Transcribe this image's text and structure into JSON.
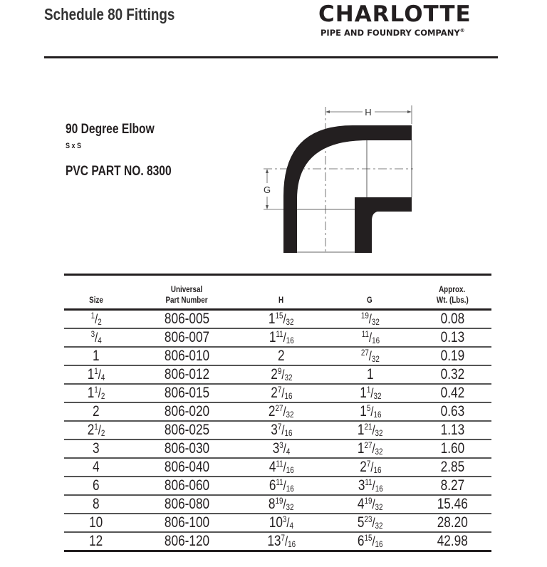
{
  "header": {
    "title": "Schedule 80 Fittings",
    "logo_main": "CHARLOTTE",
    "logo_sub": "PIPE AND FOUNDRY COMPANY",
    "logo_reg": "®"
  },
  "product": {
    "name": "90 Degree Elbow",
    "connection": "S x S",
    "part_no": "PVC PART NO. 8300"
  },
  "drawing": {
    "label_h": "H",
    "label_g": "G"
  },
  "table": {
    "headers": {
      "size": "Size",
      "part_line1": "Universal",
      "part_line2": "Part Number",
      "h": "H",
      "g": "G",
      "wt_line1": "Approx.",
      "wt_line2": "Wt. (Lbs.)"
    },
    "rows": [
      {
        "size": {
          "w": "",
          "n": "1",
          "d": "2"
        },
        "part": "806-005",
        "h": {
          "w": "1",
          "n": "15",
          "d": "32"
        },
        "g": {
          "w": "",
          "n": "19",
          "d": "32"
        },
        "wt": "0.08"
      },
      {
        "size": {
          "w": "",
          "n": "3",
          "d": "4"
        },
        "part": "806-007",
        "h": {
          "w": "1",
          "n": "11",
          "d": "16"
        },
        "g": {
          "w": "",
          "n": "11",
          "d": "16"
        },
        "wt": "0.13"
      },
      {
        "size": {
          "w": "1",
          "n": "",
          "d": ""
        },
        "part": "806-010",
        "h": {
          "w": "2",
          "n": "",
          "d": ""
        },
        "g": {
          "w": "",
          "n": "27",
          "d": "32"
        },
        "wt": "0.19"
      },
      {
        "size": {
          "w": "1",
          "n": "1",
          "d": "4"
        },
        "part": "806-012",
        "h": {
          "w": "2",
          "n": "9",
          "d": "32"
        },
        "g": {
          "w": "1",
          "n": "",
          "d": ""
        },
        "wt": "0.32"
      },
      {
        "size": {
          "w": "1",
          "n": "1",
          "d": "2"
        },
        "part": "806-015",
        "h": {
          "w": "2",
          "n": "7",
          "d": "16"
        },
        "g": {
          "w": "1",
          "n": "1",
          "d": "32"
        },
        "wt": "0.42"
      },
      {
        "size": {
          "w": "2",
          "n": "",
          "d": ""
        },
        "part": "806-020",
        "h": {
          "w": "2",
          "n": "27",
          "d": "32"
        },
        "g": {
          "w": "1",
          "n": "5",
          "d": "16"
        },
        "wt": "0.63"
      },
      {
        "size": {
          "w": "2",
          "n": "1",
          "d": "2"
        },
        "part": "806-025",
        "h": {
          "w": "3",
          "n": "7",
          "d": "16"
        },
        "g": {
          "w": "1",
          "n": "21",
          "d": "32"
        },
        "wt": "1.13"
      },
      {
        "size": {
          "w": "3",
          "n": "",
          "d": ""
        },
        "part": "806-030",
        "h": {
          "w": "3",
          "n": "3",
          "d": "4"
        },
        "g": {
          "w": "1",
          "n": "27",
          "d": "32"
        },
        "wt": "1.60"
      },
      {
        "size": {
          "w": "4",
          "n": "",
          "d": ""
        },
        "part": "806-040",
        "h": {
          "w": "4",
          "n": "11",
          "d": "16"
        },
        "g": {
          "w": "2",
          "n": "7",
          "d": "16"
        },
        "wt": "2.85"
      },
      {
        "size": {
          "w": "6",
          "n": "",
          "d": ""
        },
        "part": "806-060",
        "h": {
          "w": "6",
          "n": "11",
          "d": "16"
        },
        "g": {
          "w": "3",
          "n": "11",
          "d": "16"
        },
        "wt": "8.27"
      },
      {
        "size": {
          "w": "8",
          "n": "",
          "d": ""
        },
        "part": "806-080",
        "h": {
          "w": "8",
          "n": "19",
          "d": "32"
        },
        "g": {
          "w": "4",
          "n": "19",
          "d": "32"
        },
        "wt": "15.46"
      },
      {
        "size": {
          "w": "10",
          "n": "",
          "d": ""
        },
        "part": "806-100",
        "h": {
          "w": "10",
          "n": "3",
          "d": "4"
        },
        "g": {
          "w": "5",
          "n": "23",
          "d": "32"
        },
        "wt": "28.20"
      },
      {
        "size": {
          "w": "12",
          "n": "",
          "d": ""
        },
        "part": "806-120",
        "h": {
          "w": "13",
          "n": "7",
          "d": "16"
        },
        "g": {
          "w": "6",
          "n": "15",
          "d": "16"
        },
        "wt": "42.98"
      }
    ]
  }
}
